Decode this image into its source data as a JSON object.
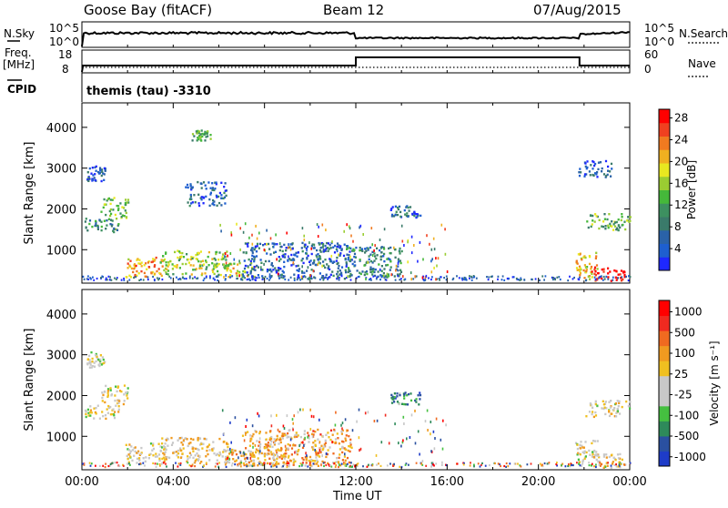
{
  "header": {
    "station": "Goose Bay (fitACF)",
    "beam": "Beam 12",
    "date": "07/Aug/2015"
  },
  "nsky_panel": {
    "left_label": "N.Sky",
    "left_ticks": [
      "10^5",
      "10^0"
    ],
    "right_label": "N.Search",
    "right_ticks": [
      "10^5",
      "10^0"
    ]
  },
  "freq_panel": {
    "left_label_line1": "Freq.",
    "left_label_line2": "[MHz]",
    "left_ticks": [
      "18",
      "8"
    ],
    "right_label": "Nave",
    "right_ticks": [
      "60",
      "0"
    ]
  },
  "cpid": {
    "label": "CPID",
    "text": "themis (tau) -3310"
  },
  "time_axis": {
    "label": "Time UT",
    "ticks": [
      "00:00",
      "04:00",
      "08:00",
      "12:00",
      "16:00",
      "20:00",
      "00:00"
    ]
  },
  "chart_data": [
    {
      "type": "heatmap",
      "title": "",
      "xlabel": "Time UT",
      "ylabel": "Slant Range [km]",
      "x_ticks": [
        "00:00",
        "04:00",
        "08:00",
        "12:00",
        "16:00",
        "20:00",
        "00:00"
      ],
      "y_ticks": [
        1000,
        2000,
        3000,
        4000
      ],
      "colorbar": {
        "label": "Power [dB]",
        "ticks": [
          "4",
          "8",
          "12",
          "16",
          "20",
          "24",
          "28"
        ],
        "colors": [
          "#1e28ff",
          "#1e5fd0",
          "#2a62a8",
          "#3a7a6a",
          "#3d9060",
          "#45b83a",
          "#9acd32",
          "#e8e820",
          "#f0b020",
          "#f07a20",
          "#f04020",
          "#ff0000"
        ]
      },
      "regions": [
        {
          "t0": 0.2,
          "t1": 1.0,
          "r0": 2700,
          "r1": 3100,
          "level": 0.15
        },
        {
          "t0": 0.1,
          "t1": 1.6,
          "r0": 1450,
          "r1": 1800,
          "level": 0.35
        },
        {
          "t0": 0.8,
          "t1": 2.0,
          "r0": 1800,
          "r1": 2300,
          "level": 0.45
        },
        {
          "t0": 1.9,
          "t1": 3.6,
          "r0": 350,
          "r1": 850,
          "level": 0.75
        },
        {
          "t0": 3.4,
          "t1": 6.4,
          "r0": 400,
          "r1": 1000,
          "level": 0.55
        },
        {
          "t0": 6.2,
          "t1": 7.6,
          "r0": 350,
          "r1": 700,
          "level": 0.6
        },
        {
          "t0": 4.8,
          "t1": 5.6,
          "r0": 3700,
          "r1": 3950,
          "level": 0.4
        },
        {
          "t0": 4.5,
          "t1": 6.3,
          "r0": 2100,
          "r1": 2700,
          "level": 0.2
        },
        {
          "t0": 7.0,
          "t1": 11.8,
          "r0": 300,
          "r1": 1200,
          "level": 0.2
        },
        {
          "t0": 11.5,
          "t1": 14.0,
          "r0": 350,
          "r1": 1100,
          "level": 0.3
        },
        {
          "t0": 13.5,
          "t1": 14.8,
          "r0": 1800,
          "r1": 2100,
          "level": 0.2
        },
        {
          "t0": 21.6,
          "t1": 22.6,
          "r0": 300,
          "r1": 950,
          "level": 0.65
        },
        {
          "t0": 22.3,
          "t1": 23.8,
          "r0": 250,
          "r1": 600,
          "level": 0.95
        },
        {
          "t0": 22.0,
          "t1": 24.0,
          "r0": 1500,
          "r1": 1900,
          "level": 0.45
        },
        {
          "t0": 21.7,
          "t1": 23.2,
          "r0": 2800,
          "r1": 3200,
          "level": 0.15
        }
      ]
    },
    {
      "type": "heatmap",
      "title": "",
      "xlabel": "Time UT",
      "ylabel": "Slant Range [km]",
      "x_ticks": [
        "00:00",
        "04:00",
        "08:00",
        "12:00",
        "16:00",
        "20:00",
        "00:00"
      ],
      "y_ticks": [
        1000,
        2000,
        3000,
        4000
      ],
      "colorbar": {
        "label": "Velocity [m s⁻¹]",
        "ticks": [
          "1000",
          "500",
          "100",
          "25",
          "-25",
          "-100",
          "-500",
          "-1000"
        ],
        "colors": [
          "#1e3cc8",
          "#2a50a0",
          "#2e8a5a",
          "#45c040",
          "#c8c8c8",
          "#c8c8c8",
          "#f0c020",
          "#f09a20",
          "#f06a20",
          "#f02a20",
          "#ff0000"
        ]
      },
      "regions": [
        {
          "t0": 0.2,
          "t1": 1.0,
          "r0": 2700,
          "r1": 3100,
          "level": 0.45
        },
        {
          "t0": 0.1,
          "t1": 1.6,
          "r0": 1450,
          "r1": 1800,
          "level": 0.5
        },
        {
          "t0": 0.8,
          "t1": 2.0,
          "r0": 1800,
          "r1": 2300,
          "level": 0.5
        },
        {
          "t0": 1.9,
          "t1": 3.6,
          "r0": 350,
          "r1": 850,
          "level": 0.5
        },
        {
          "t0": 3.4,
          "t1": 6.4,
          "r0": 400,
          "r1": 1000,
          "level": 0.55
        },
        {
          "t0": 6.2,
          "t1": 8.6,
          "r0": 300,
          "r1": 700,
          "level": 0.6
        },
        {
          "t0": 7.0,
          "t1": 11.8,
          "r0": 300,
          "r1": 1200,
          "level": 0.65
        },
        {
          "t0": 13.5,
          "t1": 14.8,
          "r0": 1800,
          "r1": 2100,
          "level": 0.2
        },
        {
          "t0": 21.6,
          "t1": 22.6,
          "r0": 300,
          "r1": 950,
          "level": 0.5
        },
        {
          "t0": 22.3,
          "t1": 23.8,
          "r0": 250,
          "r1": 600,
          "level": 0.55
        },
        {
          "t0": 22.0,
          "t1": 24.0,
          "r0": 1500,
          "r1": 1900,
          "level": 0.5
        }
      ]
    }
  ]
}
